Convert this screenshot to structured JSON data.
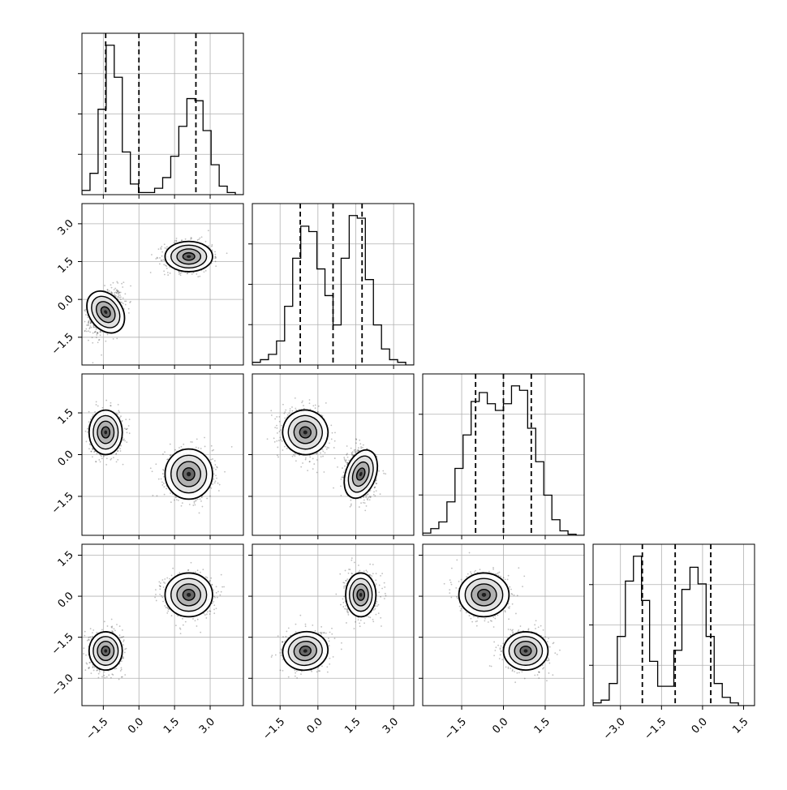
{
  "colors": {
    "axes": "#000000",
    "grid": "#b0b0b0",
    "hist": "#000000",
    "contour_line": "#000000",
    "scatter": "#000000"
  },
  "chart_data": {
    "type": "corner",
    "description_of_layout": "4x4 lower-triangular corner plot of 4 parameters",
    "params": [
      {
        "index": 0,
        "range": [
          -2.4,
          4.4
        ],
        "ticks": [
          -1.5,
          0.0,
          1.5,
          3.0
        ],
        "tick_labels": [
          "−1.5",
          "0.0",
          "1.5",
          "3.0"
        ],
        "quantiles": [
          -1.4,
          0.0,
          2.4
        ],
        "hist": [
          2,
          10,
          40,
          70,
          55,
          20,
          5,
          1,
          1,
          3,
          8,
          18,
          32,
          45,
          44,
          30,
          14,
          4,
          1,
          0
        ]
      },
      {
        "index": 1,
        "range": [
          -2.6,
          3.8
        ],
        "ticks": [
          -1.5,
          0.0,
          1.5,
          3.0
        ],
        "tick_labels": [
          "−1.5",
          "0.0",
          "1.5",
          "3.0"
        ],
        "quantiles": [
          -0.7,
          0.6,
          1.75
        ],
        "hist": [
          1,
          2,
          4,
          9,
          22,
          40,
          52,
          50,
          36,
          26,
          15,
          40,
          56,
          55,
          32,
          15,
          6,
          2,
          1,
          0
        ]
      },
      {
        "index": 2,
        "range": [
          -2.9,
          2.9
        ],
        "ticks": [
          -1.5,
          0.0,
          1.5
        ],
        "tick_labels": [
          "−1.5",
          "0.0",
          "1.5"
        ],
        "quantiles": [
          -1.0,
          0.0,
          1.0
        ],
        "hist": [
          2,
          6,
          12,
          30,
          60,
          90,
          120,
          128,
          118,
          112,
          118,
          134,
          130,
          96,
          66,
          36,
          14,
          4,
          1,
          0
        ]
      },
      {
        "index": 3,
        "range": [
          -4.0,
          1.9
        ],
        "ticks": [
          -3.0,
          -1.5,
          0.0,
          1.5
        ],
        "tick_labels": [
          "−3.0",
          "−1.5",
          "0.0",
          "1.5"
        ],
        "quantiles": [
          -2.2,
          -1.0,
          0.3
        ],
        "hist": [
          1,
          2,
          8,
          25,
          45,
          54,
          38,
          16,
          7,
          7,
          20,
          42,
          50,
          44,
          25,
          8,
          3,
          1,
          0,
          0
        ]
      }
    ],
    "modes": [
      {
        "means": [
          -1.4,
          -0.5,
          0.8,
          -2.0
        ],
        "sd": [
          0.35,
          0.45,
          0.4,
          0.35
        ]
      },
      {
        "means": [
          2.1,
          1.7,
          -0.7,
          0.05
        ],
        "sd": [
          0.5,
          0.3,
          0.45,
          0.4
        ]
      }
    ],
    "pair_correlation": {
      "0_1": [
        0.35,
        0.0
      ],
      "0_2": [
        0.0,
        0.0
      ],
      "0_3": [
        0.0,
        0.0
      ],
      "1_2": [
        -0.1,
        -0.1
      ],
      "1_3": [
        0.1,
        0.0
      ],
      "2_3": [
        0.0,
        0.0
      ]
    },
    "y_tick_labels_hist": [],
    "grid": true,
    "xlabel": "",
    "ylabel": ""
  }
}
